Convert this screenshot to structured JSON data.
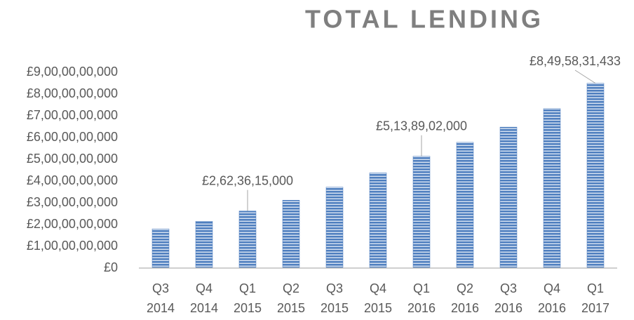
{
  "chart_data": {
    "type": "bar",
    "title": "TOTAL LENDING",
    "categories": [
      [
        "Q3",
        "2014"
      ],
      [
        "Q4",
        "2014"
      ],
      [
        "Q1",
        "2015"
      ],
      [
        "Q2",
        "2015"
      ],
      [
        "Q3",
        "2015"
      ],
      [
        "Q4",
        "2015"
      ],
      [
        "Q1",
        "2016"
      ],
      [
        "Q2",
        "2016"
      ],
      [
        "Q3",
        "2016"
      ],
      [
        "Q4",
        "2016"
      ],
      [
        "Q1",
        "2017"
      ]
    ],
    "values": [
      1800000000,
      2150000000,
      2623615000,
      3120000000,
      3720000000,
      4380000000,
      5138902000,
      5780000000,
      6480000000,
      7330000000,
      8495831433
    ],
    "value_labels": [
      null,
      null,
      "£2,62,36,15,000",
      null,
      null,
      null,
      "£5,13,89,02,000",
      null,
      null,
      null,
      "£8,49,58,31,433"
    ],
    "color": "#4f7fbf",
    "ylim": [
      0,
      9000000000
    ],
    "yticks": [
      {
        "value": 0,
        "label": "£0"
      },
      {
        "value": 1000000000,
        "label": "£1,00,00,00,000"
      },
      {
        "value": 2000000000,
        "label": "£2,00,00,00,000"
      },
      {
        "value": 3000000000,
        "label": "£3,00,00,00,000"
      },
      {
        "value": 4000000000,
        "label": "£4,00,00,00,000"
      },
      {
        "value": 5000000000,
        "label": "£5,00,00,00,000"
      },
      {
        "value": 6000000000,
        "label": "£6,00,00,00,000"
      },
      {
        "value": 7000000000,
        "label": "£7,00,00,00,000"
      },
      {
        "value": 8000000000,
        "label": "£8,00,00,00,000"
      },
      {
        "value": 9000000000,
        "label": "£9,00,00,00,000"
      }
    ],
    "grid": false
  }
}
